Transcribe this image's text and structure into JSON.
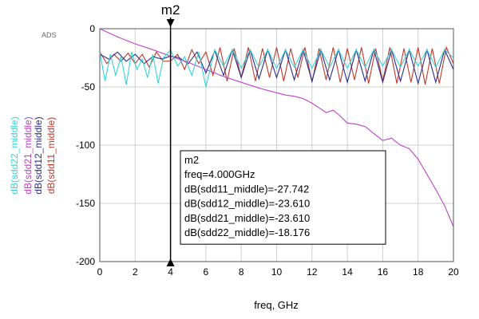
{
  "chart_data": {
    "type": "line",
    "logo": "ADS",
    "xlabel": "freq, GHz",
    "xlim": [
      0,
      20
    ],
    "ylim": [
      -200,
      0
    ],
    "xticks": [
      0,
      2,
      4,
      6,
      8,
      10,
      12,
      14,
      16,
      18,
      20
    ],
    "yticks": [
      0,
      -50,
      -100,
      -150,
      -200
    ],
    "legend_placement": "left-vertical",
    "series": [
      {
        "name": "dB(sdd11_middle)",
        "color": "#c0392b",
        "x": [
          0,
          0.4,
          0.8,
          1.2,
          1.6,
          2,
          2.4,
          2.8,
          3.2,
          3.6,
          4,
          4.4,
          4.8,
          5.2,
          5.6,
          6,
          6.4,
          6.8,
          7.2,
          7.6,
          8,
          8.4,
          8.8,
          9.2,
          9.6,
          10,
          10.4,
          10.8,
          11.2,
          11.6,
          12,
          12.4,
          12.8,
          13.2,
          13.6,
          14,
          14.4,
          14.8,
          15.2,
          15.6,
          16,
          16.4,
          16.8,
          17.2,
          17.6,
          18,
          18.4,
          18.8,
          19.2,
          19.6,
          20
        ],
        "y": [
          -20,
          -30,
          -22,
          -28,
          -21,
          -30,
          -22,
          -33,
          -20,
          -28,
          -27.742,
          -22,
          -35,
          -18,
          -30,
          -20,
          -40,
          -16,
          -45,
          -17,
          -42,
          -16,
          -45,
          -17,
          -42,
          -16,
          -45,
          -17,
          -42,
          -16,
          -46,
          -17,
          -44,
          -16,
          -46,
          -17,
          -44,
          -16,
          -47,
          -17,
          -45,
          -16,
          -47,
          -17,
          -46,
          -16,
          -48,
          -17,
          -47,
          -16,
          -30
        ]
      },
      {
        "name": "dB(sdd12_middle)",
        "color": "#2c2c8c",
        "x": [
          0,
          0.5,
          1,
          1.5,
          2,
          2.5,
          3,
          3.5,
          4,
          4.5,
          5,
          5.5,
          6,
          6.5,
          7,
          7.5,
          8,
          8.5,
          9,
          9.5,
          10,
          10.5,
          11,
          11.5,
          12,
          12.5,
          13,
          13.5,
          14,
          14.5,
          15,
          15.5,
          16,
          16.5,
          17,
          17.5,
          18,
          18.5,
          19,
          19.5,
          20
        ],
        "y": [
          -22,
          -26,
          -20,
          -28,
          -22,
          -30,
          -24,
          -26,
          -23.61,
          -25,
          -30,
          -20,
          -38,
          -19,
          -40,
          -18,
          -42,
          -18,
          -43,
          -18,
          -42,
          -18,
          -44,
          -18,
          -45,
          -18,
          -44,
          -18,
          -46,
          -18,
          -45,
          -18,
          -46,
          -18,
          -45,
          -18,
          -47,
          -18,
          -46,
          -18,
          -35
        ]
      },
      {
        "name": "dB(sdd21_middle)",
        "color": "#c040c8",
        "x": [
          0,
          1,
          2,
          3,
          4,
          5,
          6,
          7,
          8,
          9,
          10,
          10.5,
          11,
          11.5,
          12,
          12.5,
          12.8,
          13.2,
          13.6,
          14,
          14.5,
          15,
          15.5,
          16,
          16.5,
          17,
          17.5,
          18,
          18.5,
          19,
          19.5,
          20
        ],
        "y": [
          0,
          -7,
          -13,
          -18,
          -23.61,
          -29,
          -35,
          -41,
          -46,
          -51,
          -55,
          -57,
          -58,
          -60,
          -64,
          -69,
          -72,
          -70,
          -75,
          -81,
          -82,
          -84,
          -90,
          -96,
          -94,
          -100,
          -103,
          -112,
          -125,
          -138,
          -152,
          -170
        ]
      },
      {
        "name": "dB(sdd22_middle)",
        "color": "#33d6d6",
        "x": [
          0,
          0.3,
          0.6,
          0.9,
          1.2,
          1.5,
          1.8,
          2.1,
          2.4,
          2.7,
          3,
          3.3,
          3.6,
          4,
          4.4,
          4.8,
          5.2,
          5.6,
          6,
          6.5,
          7,
          7.5,
          8,
          8.5,
          9,
          9.5,
          10,
          10.5,
          11,
          11.5,
          12,
          12.5,
          13,
          13.5,
          14,
          14.5,
          15,
          15.5,
          16,
          16.5,
          17,
          17.5,
          18,
          18.5,
          19,
          19.5,
          20
        ],
        "y": [
          -20,
          -45,
          -22,
          -40,
          -24,
          -48,
          -20,
          -35,
          -26,
          -42,
          -22,
          -47,
          -25,
          -18.176,
          -32,
          -24,
          -40,
          -20,
          -50,
          -18,
          -32,
          -18,
          -34,
          -18,
          -33,
          -18,
          -34,
          -18,
          -33,
          -18,
          -34,
          -18,
          -33,
          -18,
          -34,
          -18,
          -33,
          -18,
          -32,
          -18,
          -33,
          -18,
          -32,
          -18,
          -33,
          -18,
          -25
        ]
      }
    ]
  },
  "marker": {
    "name": "m2",
    "freq": 4,
    "lines": [
      "m2",
      "freq=4.000GHz",
      "dB(sdd11_middle)=-27.742",
      "dB(sdd12_middle)=-23.610",
      "dB(sdd21_middle)=-23.610",
      "dB(sdd22_middle)=-18.176"
    ]
  }
}
